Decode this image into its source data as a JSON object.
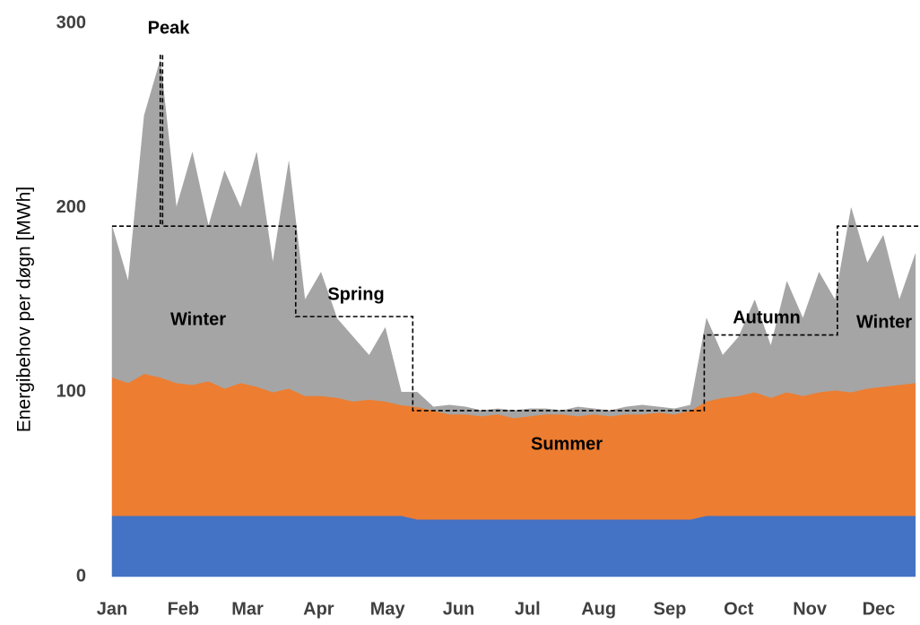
{
  "chart_data": {
    "type": "stacked-area",
    "y_label": "Energibehov per døgn [MWh]",
    "x": [
      0,
      7,
      14,
      21,
      28,
      35,
      42,
      49,
      56,
      63,
      70,
      77,
      84,
      91,
      98,
      105,
      112,
      119,
      126,
      133,
      140,
      147,
      154,
      161,
      168,
      175,
      182,
      189,
      196,
      203,
      210,
      217,
      224,
      231,
      238,
      245,
      252,
      259,
      266,
      273,
      280,
      287,
      294,
      301,
      308,
      315,
      322,
      329,
      336,
      343,
      350
    ],
    "series": [
      {
        "color": "#4472c4",
        "values": [
          33,
          33,
          33,
          33,
          33,
          33,
          33,
          33,
          33,
          33,
          33,
          33,
          33,
          33,
          33,
          33,
          33,
          33,
          33,
          31,
          31,
          31,
          31,
          31,
          31,
          31,
          31,
          31,
          31,
          31,
          31,
          31,
          31,
          31,
          31,
          31,
          31,
          33,
          33,
          33,
          33,
          33,
          33,
          33,
          33,
          33,
          33,
          33,
          33,
          33,
          33
        ]
      },
      {
        "color": "#ed7d31",
        "values": [
          75,
          72,
          77,
          75,
          72,
          71,
          73,
          69,
          72,
          70,
          67,
          69,
          65,
          65,
          64,
          62,
          63,
          62,
          60,
          61,
          59,
          57,
          57,
          56,
          57,
          55,
          56,
          57,
          57,
          56,
          57,
          56,
          57,
          57,
          58,
          57,
          59,
          62,
          64,
          65,
          67,
          64,
          67,
          65,
          67,
          68,
          67,
          69,
          70,
          71,
          72
        ]
      },
      {
        "color": "#a5a5a5",
        "values": [
          82,
          55,
          140,
          172,
          95,
          126,
          84,
          118,
          95,
          127,
          70,
          123,
          52,
          67,
          43,
          35,
          24,
          40,
          7,
          8,
          2,
          5,
          4,
          3,
          3,
          4,
          4,
          3,
          2,
          5,
          3,
          3,
          4,
          5,
          3,
          3,
          3,
          45,
          23,
          32,
          50,
          28,
          60,
          42,
          65,
          49,
          100,
          68,
          82,
          46,
          70
        ]
      }
    ],
    "steps": {
      "color": "#000000",
      "x": [
        0,
        21,
        21,
        22,
        22,
        80,
        80,
        131,
        131,
        258,
        258,
        316,
        316,
        352
      ],
      "values": [
        190,
        190,
        283,
        283,
        190,
        190,
        141,
        141,
        90,
        90,
        131,
        131,
        190,
        190
      ]
    },
    "annotations": [
      "Peak",
      "Winter",
      "Spring",
      "Summer",
      "Autumn",
      "Winter"
    ],
    "xlim": [
      0,
      352
    ],
    "xticks": [
      {
        "value": 0,
        "label": "Jan"
      },
      {
        "value": 31,
        "label": "Feb"
      },
      {
        "value": 59,
        "label": "Mar"
      },
      {
        "value": 90,
        "label": "Apr"
      },
      {
        "value": 120,
        "label": "May"
      },
      {
        "value": 151,
        "label": "Jun"
      },
      {
        "value": 181,
        "label": "Jul"
      },
      {
        "value": 212,
        "label": "Aug"
      },
      {
        "value": 243,
        "label": "Sep"
      },
      {
        "value": 273,
        "label": "Oct"
      },
      {
        "value": 304,
        "label": "Nov"
      },
      {
        "value": 334,
        "label": "Dec"
      }
    ],
    "ylim": [
      0,
      300
    ],
    "yticks": [
      0,
      100,
      200,
      300
    ]
  }
}
